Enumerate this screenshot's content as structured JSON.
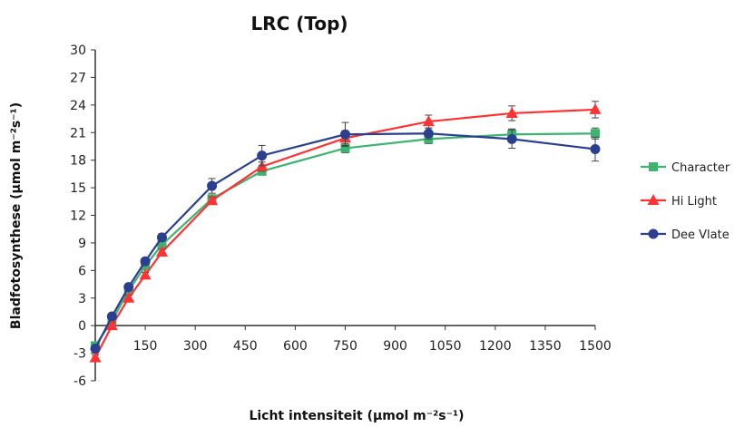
{
  "chart_data": {
    "type": "line",
    "title": "LRC (Top)",
    "xlabel": "Licht intensiteit (µmol m⁻²s⁻¹)",
    "ylabel": "Bladfotosynthese (µmol m⁻²s⁻¹)",
    "xlim": [
      0,
      1500
    ],
    "ylim": [
      -6,
      30
    ],
    "xticks": [
      150,
      300,
      450,
      600,
      750,
      900,
      1050,
      1200,
      1350,
      1500
    ],
    "yticks": [
      -6,
      -3,
      0,
      3,
      6,
      9,
      12,
      15,
      18,
      21,
      24,
      27,
      30
    ],
    "grid": false,
    "legend_position": "right",
    "x": [
      0,
      50,
      100,
      150,
      200,
      350,
      500,
      750,
      1000,
      1250,
      1500
    ],
    "series": [
      {
        "name": "Character",
        "color": "#3cb371",
        "marker": "square",
        "values": [
          -2.2,
          0.5,
          3.8,
          6.5,
          8.8,
          13.8,
          16.8,
          19.3,
          20.3,
          20.8,
          20.9
        ],
        "errors": [
          0.3,
          0.3,
          0.3,
          0.3,
          0.3,
          0.3,
          0.4,
          0.5,
          0.5,
          0.6,
          0.6
        ]
      },
      {
        "name": "Hi Light",
        "color": "#ff3333",
        "marker": "triangle",
        "values": [
          -3.5,
          0.0,
          3.0,
          5.5,
          8.0,
          13.6,
          17.3,
          20.4,
          22.2,
          23.1,
          23.5
        ],
        "errors": [
          0.3,
          0.3,
          0.3,
          0.3,
          0.3,
          0.4,
          0.5,
          0.8,
          0.7,
          0.8,
          0.9
        ]
      },
      {
        "name": "Dee Vlate",
        "color": "#2b3f8f",
        "marker": "circle",
        "values": [
          -2.5,
          1.0,
          4.2,
          7.0,
          9.6,
          15.2,
          18.5,
          20.8,
          20.9,
          20.3,
          19.2
        ],
        "errors": [
          0.3,
          0.3,
          0.3,
          0.3,
          0.4,
          0.8,
          1.1,
          1.3,
          0.6,
          1.0,
          1.3
        ]
      }
    ]
  }
}
